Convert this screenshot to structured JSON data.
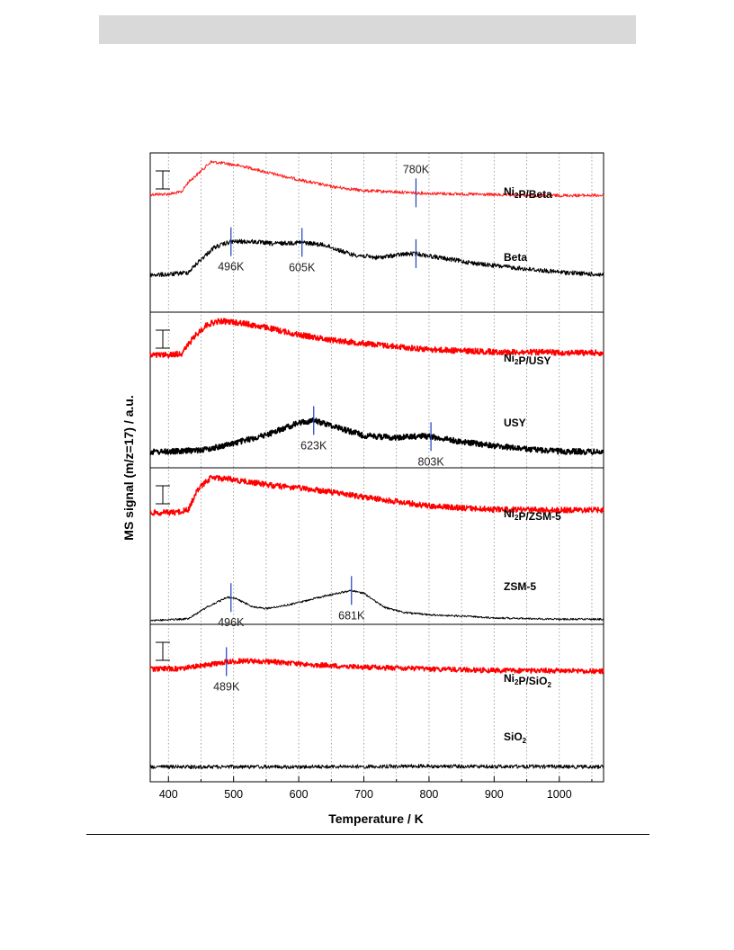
{
  "chart_data": {
    "type": "line",
    "xlabel": "Temperature / K",
    "ylabel": "MS signal (m/z=17) / a.u.",
    "xlim": [
      372,
      1068
    ],
    "xticks": [
      400,
      500,
      600,
      700,
      800,
      900,
      1000
    ],
    "tick_labels": [
      "400",
      "500",
      "600",
      "700",
      "800",
      "900",
      "1000"
    ],
    "grid": "vertical dotted every 50 K",
    "panels": [
      {
        "series": [
          {
            "name_main": "Ni",
            "name_sub": "2",
            "name_rest": "P/Beta",
            "name_sub2": "",
            "name_rest2": "",
            "color": "#ff2020",
            "noise": 0.5,
            "width": 1.0,
            "points": [
              [
                372,
                0.05
              ],
              [
                400,
                0.06
              ],
              [
                420,
                0.12
              ],
              [
                430,
                0.4
              ],
              [
                445,
                0.65
              ],
              [
                465,
                1.0
              ],
              [
                490,
                0.95
              ],
              [
                520,
                0.85
              ],
              [
                550,
                0.7
              ],
              [
                600,
                0.48
              ],
              [
                650,
                0.28
              ],
              [
                700,
                0.16
              ],
              [
                750,
                0.12
              ],
              [
                800,
                0.08
              ],
              [
                850,
                0.06
              ],
              [
                900,
                0.04
              ],
              [
                950,
                0.02
              ],
              [
                1000,
                0.02
              ],
              [
                1068,
                0.02
              ]
            ],
            "peaks": [
              {
                "x": 780,
                "label": "780K",
                "label_pos": "above"
              }
            ]
          },
          {
            "name_main": "Beta",
            "name_sub": "",
            "name_rest": "",
            "name_sub2": "",
            "name_rest2": "",
            "color": "#000000",
            "noise": 0.7,
            "width": 1.1,
            "points": [
              [
                372,
                -0.25
              ],
              [
                400,
                -0.24
              ],
              [
                430,
                -0.18
              ],
              [
                450,
                0.2
              ],
              [
                470,
                0.55
              ],
              [
                496,
                0.72
              ],
              [
                530,
                0.72
              ],
              [
                560,
                0.66
              ],
              [
                605,
                0.7
              ],
              [
                640,
                0.62
              ],
              [
                680,
                0.35
              ],
              [
                720,
                0.25
              ],
              [
                760,
                0.35
              ],
              [
                780,
                0.37
              ],
              [
                820,
                0.24
              ],
              [
                880,
                0.06
              ],
              [
                950,
                -0.08
              ],
              [
                1000,
                -0.17
              ],
              [
                1068,
                -0.25
              ]
            ],
            "peaks": [
              {
                "x": 496,
                "label": "496K",
                "label_pos": "below"
              },
              {
                "x": 605,
                "label": "605K",
                "label_pos": "below"
              },
              {
                "x": 780,
                "label": "",
                "label_pos": "below"
              }
            ]
          }
        ]
      },
      {
        "series": [
          {
            "name_main": "Ni",
            "name_sub": "2",
            "name_rest": "P/USY",
            "name_sub2": "",
            "name_rest2": "",
            "color": "#ff0000",
            "noise": 0.9,
            "width": 1.6,
            "points": [
              [
                372,
                -0.05
              ],
              [
                400,
                -0.04
              ],
              [
                420,
                0.0
              ],
              [
                440,
                0.5
              ],
              [
                460,
                0.86
              ],
              [
                480,
                0.95
              ],
              [
                510,
                0.9
              ],
              [
                550,
                0.76
              ],
              [
                600,
                0.55
              ],
              [
                650,
                0.4
              ],
              [
                700,
                0.3
              ],
              [
                750,
                0.2
              ],
              [
                800,
                0.12
              ],
              [
                850,
                0.08
              ],
              [
                900,
                0.05
              ],
              [
                1000,
                0.03
              ],
              [
                1068,
                0.02
              ]
            ],
            "peaks": []
          },
          {
            "name_main": "USY",
            "name_sub": "",
            "name_rest": "",
            "name_sub2": "",
            "name_rest2": "",
            "color": "#000000",
            "noise": 0.9,
            "width": 1.7,
            "points": [
              [
                372,
                -0.8
              ],
              [
                420,
                -0.78
              ],
              [
                460,
                -0.72
              ],
              [
                500,
                -0.55
              ],
              [
                550,
                -0.3
              ],
              [
                600,
                0.05
              ],
              [
                623,
                0.12
              ],
              [
                650,
                -0.02
              ],
              [
                700,
                -0.32
              ],
              [
                750,
                -0.38
              ],
              [
                790,
                -0.33
              ],
              [
                803,
                -0.35
              ],
              [
                850,
                -0.5
              ],
              [
                900,
                -0.62
              ],
              [
                950,
                -0.72
              ],
              [
                1000,
                -0.78
              ],
              [
                1068,
                -0.8
              ]
            ],
            "peaks": [
              {
                "x": 623,
                "label": "623K",
                "label_pos": "below"
              },
              {
                "x": 803,
                "label": "803K",
                "label_pos": "below"
              }
            ]
          }
        ]
      },
      {
        "series": [
          {
            "name_main": "Ni",
            "name_sub": "2",
            "name_rest": "P/ZSM-5",
            "name_sub2": "",
            "name_rest2": "",
            "color": "#ff0000",
            "noise": 0.9,
            "width": 1.5,
            "points": [
              [
                372,
                -0.08
              ],
              [
                410,
                -0.07
              ],
              [
                430,
                0.0
              ],
              [
                445,
                0.6
              ],
              [
                465,
                0.95
              ],
              [
                490,
                0.92
              ],
              [
                520,
                0.83
              ],
              [
                560,
                0.72
              ],
              [
                620,
                0.6
              ],
              [
                660,
                0.5
              ],
              [
                700,
                0.38
              ],
              [
                750,
                0.25
              ],
              [
                800,
                0.12
              ],
              [
                850,
                0.06
              ],
              [
                900,
                0.02
              ],
              [
                1000,
                0.0
              ],
              [
                1068,
                0.0
              ]
            ],
            "peaks": []
          },
          {
            "name_main": "ZSM-5",
            "name_sub": "",
            "name_rest": "",
            "name_sub2": "",
            "name_rest2": "",
            "color": "#000000",
            "noise": 0.3,
            "width": 0.9,
            "points": [
              [
                372,
                -1.1
              ],
              [
                430,
                -1.05
              ],
              [
                460,
                -0.7
              ],
              [
                490,
                -0.42
              ],
              [
                500,
                -0.43
              ],
              [
                530,
                -0.7
              ],
              [
                550,
                -0.75
              ],
              [
                590,
                -0.62
              ],
              [
                640,
                -0.38
              ],
              [
                681,
                -0.22
              ],
              [
                700,
                -0.3
              ],
              [
                730,
                -0.7
              ],
              [
                760,
                -0.86
              ],
              [
                800,
                -0.93
              ],
              [
                850,
                -0.97
              ],
              [
                900,
                -1.02
              ],
              [
                1000,
                -1.06
              ],
              [
                1068,
                -1.06
              ]
            ],
            "peaks": [
              {
                "x": 496,
                "label": "496K",
                "label_pos": "below"
              },
              {
                "x": 681,
                "label": "681K",
                "label_pos": "below"
              }
            ]
          }
        ]
      },
      {
        "series": [
          {
            "name_main": "Ni",
            "name_sub": "2",
            "name_rest": "P/SiO",
            "name_sub2": "2",
            "name_rest2": "",
            "color": "#ff0000",
            "noise": 0.8,
            "width": 1.5,
            "points": [
              [
                372,
                -0.1
              ],
              [
                420,
                -0.08
              ],
              [
                460,
                0.02
              ],
              [
                489,
                0.12
              ],
              [
                520,
                0.14
              ],
              [
                560,
                0.12
              ],
              [
                600,
                0.05
              ],
              [
                650,
                0.0
              ],
              [
                700,
                -0.04
              ],
              [
                800,
                -0.1
              ],
              [
                900,
                -0.14
              ],
              [
                1000,
                -0.15
              ],
              [
                1068,
                -0.16
              ]
            ],
            "peaks": [
              {
                "x": 489,
                "label": "489K",
                "label_pos": "below"
              }
            ]
          },
          {
            "name_main": "SiO",
            "name_sub": "2",
            "name_rest": "",
            "name_sub2": "",
            "name_rest2": "",
            "color": "#000000",
            "noise": 0.6,
            "width": 1.0,
            "points": [
              [
                372,
                -0.8
              ],
              [
                600,
                -0.8
              ],
              [
                800,
                -0.78
              ],
              [
                1068,
                -0.8
              ]
            ],
            "peaks": []
          }
        ]
      }
    ]
  }
}
